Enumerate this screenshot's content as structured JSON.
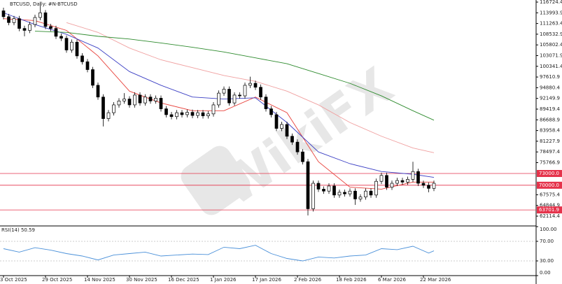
{
  "chart_data": [
    {
      "type": "candlestick",
      "title": "BTCUSD, Daily: #N-BTCUSD",
      "watermark": "WikiFX",
      "categories": [
        "3 Oct 2025",
        null,
        null,
        null,
        null,
        null,
        null,
        null,
        "29 Oct 2025",
        null,
        null,
        null,
        null,
        null,
        null,
        null,
        "14 Nov 2025",
        null,
        null,
        null,
        null,
        null,
        null,
        null,
        "30 Nov 2025",
        null,
        null,
        null,
        null,
        null,
        null,
        null,
        "16 Dec 2025",
        null,
        null,
        null,
        null,
        null,
        null,
        null,
        "1 Jan 2026",
        null,
        null,
        null,
        null,
        null,
        null,
        null,
        "17 Jan 2026",
        null,
        null,
        null,
        null,
        null,
        null,
        null,
        "2 Feb 2026",
        null,
        null,
        null,
        null,
        null,
        null,
        null,
        "18 Feb 2026",
        null,
        null,
        null,
        null,
        null,
        null,
        null,
        "6 Mar 2026",
        null,
        null,
        null,
        null,
        null,
        null,
        null,
        "22 Mar 2026",
        null,
        null
      ],
      "open": [
        114500,
        113000,
        111500,
        112500,
        110000,
        109500,
        111000,
        112800,
        114000,
        110500,
        110000,
        108000,
        107500,
        104500,
        106500,
        103000,
        101500,
        99500,
        95500,
        92500,
        87000,
        88500,
        90500,
        91500,
        92000,
        90500,
        93000,
        91000,
        92500,
        91500,
        92200,
        89500,
        88000,
        87500,
        88500,
        88000,
        88600,
        87800,
        88500,
        87700,
        88200,
        90500,
        93500,
        94500,
        91000,
        93000,
        92800,
        95500,
        96000,
        95000,
        92500,
        89500,
        88000,
        84500,
        85500,
        82500,
        81000,
        78500,
        76000,
        64000,
        70500,
        69000,
        68500,
        69800,
        67500,
        68200,
        67800,
        68500,
        66500,
        67000,
        68500,
        67500,
        71000,
        72500,
        69500,
        70500,
        71200,
        70800,
        71500,
        73500,
        70500,
        70000,
        69200
      ],
      "high": [
        115300,
        113700,
        113200,
        113200,
        110700,
        111700,
        113500,
        116800,
        114700,
        111200,
        110700,
        108700,
        108200,
        107200,
        107200,
        103700,
        102200,
        100200,
        96200,
        93200,
        89200,
        91200,
        92200,
        93500,
        92700,
        93700,
        93700,
        93200,
        93200,
        92900,
        92900,
        90200,
        88700,
        89200,
        89200,
        89300,
        89300,
        89200,
        89200,
        88900,
        91200,
        94200,
        95200,
        95200,
        93700,
        93700,
        96200,
        97700,
        96700,
        95700,
        93200,
        90200,
        88700,
        86200,
        86200,
        83200,
        81700,
        79200,
        76700,
        71200,
        71200,
        69700,
        70500,
        70500,
        68900,
        68900,
        69200,
        69200,
        67700,
        69200,
        69200,
        71700,
        73200,
        73200,
        71200,
        71900,
        71900,
        72200,
        76000,
        74200,
        71200,
        70700,
        71200
      ],
      "low": [
        112300,
        110800,
        110800,
        109300,
        108000,
        108800,
        110300,
        112100,
        109800,
        109300,
        107300,
        106800,
        103800,
        103800,
        102300,
        100800,
        98800,
        94800,
        91800,
        85000,
        86300,
        87800,
        89800,
        90800,
        89800,
        89800,
        90300,
        90300,
        90800,
        90800,
        88800,
        87300,
        86800,
        86800,
        87300,
        87300,
        87100,
        87100,
        87000,
        87000,
        87500,
        89800,
        92800,
        90300,
        90300,
        92100,
        92100,
        94800,
        94300,
        91800,
        88800,
        87300,
        83800,
        83800,
        81800,
        80300,
        77800,
        75300,
        62300,
        63300,
        68300,
        67800,
        67800,
        66800,
        66800,
        67100,
        67100,
        65000,
        65800,
        66300,
        66800,
        66800,
        70300,
        68800,
        68800,
        69800,
        70100,
        70100,
        70800,
        69800,
        69300,
        68200,
        68500
      ],
      "close": [
        113000,
        111500,
        112500,
        110000,
        109500,
        111000,
        112800,
        114000,
        110500,
        110000,
        108000,
        107500,
        104500,
        106500,
        103000,
        101500,
        99500,
        95500,
        92500,
        87000,
        88500,
        90500,
        91500,
        92000,
        90500,
        93000,
        91000,
        92500,
        91500,
        92200,
        89500,
        88000,
        87500,
        88500,
        88000,
        88600,
        87800,
        88500,
        87700,
        88200,
        90500,
        93500,
        94500,
        91000,
        93000,
        92800,
        95500,
        96000,
        95000,
        92500,
        89500,
        88000,
        84500,
        85500,
        82500,
        81000,
        78500,
        76000,
        64000,
        70500,
        69000,
        68500,
        69800,
        67500,
        68200,
        67800,
        68500,
        66500,
        67000,
        68500,
        67500,
        71000,
        72500,
        69500,
        70500,
        71200,
        70800,
        71500,
        73500,
        70500,
        70000,
        69200,
        70500
      ],
      "up_color": "#ffffff",
      "down_color": "#000000",
      "averages": [
        {
          "color": "#e8403a",
          "x": [
            0,
            6,
            12,
            18,
            24,
            30,
            36,
            42,
            48,
            54,
            60,
            66,
            72,
            78,
            82
          ],
          "values": [
            112500,
            112000,
            109500,
            103000,
            94000,
            91000,
            89000,
            89000,
            92500,
            88500,
            76000,
            69500,
            69000,
            70800,
            70800
          ]
        },
        {
          "color": "#3b3fc4",
          "x": [
            0,
            6,
            12,
            18,
            24,
            30,
            36,
            42,
            48,
            54,
            60,
            66,
            72,
            78,
            82
          ],
          "values": [
            114000,
            111000,
            108500,
            105000,
            99000,
            95500,
            92500,
            92000,
            92300,
            86000,
            78500,
            75500,
            73500,
            72800,
            72000
          ]
        },
        {
          "color": "#f0a0a0",
          "x": [
            12,
            18,
            24,
            30,
            36,
            42,
            48,
            54,
            60,
            66,
            72,
            78,
            82
          ],
          "values": [
            111500,
            109000,
            105000,
            102000,
            100000,
            98000,
            96500,
            94000,
            90500,
            86000,
            82500,
            79500,
            78300
          ]
        },
        {
          "color": "#2e8b2e",
          "x": [
            6,
            12,
            18,
            24,
            30,
            36,
            42,
            48,
            54,
            60,
            66,
            72,
            78,
            82
          ],
          "values": [
            109300,
            109000,
            108000,
            107300,
            106300,
            105200,
            104000,
            102500,
            101000,
            98500,
            96000,
            92800,
            89000,
            86600
          ]
        }
      ],
      "levels": [
        {
          "value": 73000,
          "label": "73000.0"
        },
        {
          "value": 70000,
          "label": "70000.0"
        },
        {
          "value": 63701.9,
          "label": "63701.9"
        }
      ],
      "level_color": "#e5334b",
      "ylim": [
        59794,
        117258
      ],
      "yticks": [
        116724.4,
        113993.9,
        111263.4,
        108532.9,
        105802.4,
        103071.9,
        100341.4,
        97610.9,
        94880.4,
        92149.9,
        89419.4,
        86688.9,
        83958.4,
        81227.9,
        78497.4,
        75766.9,
        67575.4,
        64844.9,
        62114.4
      ]
    },
    {
      "type": "line",
      "title": "RSI(14) 50.59",
      "color": "#4a90d9",
      "x": [
        0,
        3,
        6,
        9,
        12,
        15,
        18,
        21,
        24,
        27,
        30,
        33,
        36,
        39,
        42,
        45,
        48,
        51,
        54,
        57,
        60,
        63,
        66,
        69,
        72,
        75,
        78,
        81,
        82
      ],
      "values": [
        55,
        48,
        57,
        52,
        45,
        40,
        32,
        42,
        45,
        48,
        40,
        42,
        44,
        43,
        58,
        55,
        62,
        45,
        35,
        30,
        38,
        36,
        40,
        42,
        55,
        53,
        60,
        46,
        50.59
      ],
      "ylim": [
        0,
        100
      ],
      "yticks": [
        {
          "value": 100,
          "label": "100.00"
        },
        {
          "value": 70,
          "label": "70.00"
        },
        {
          "value": 30,
          "label": "30.00"
        },
        {
          "value": 0,
          "label": "0.00"
        }
      ]
    }
  ]
}
